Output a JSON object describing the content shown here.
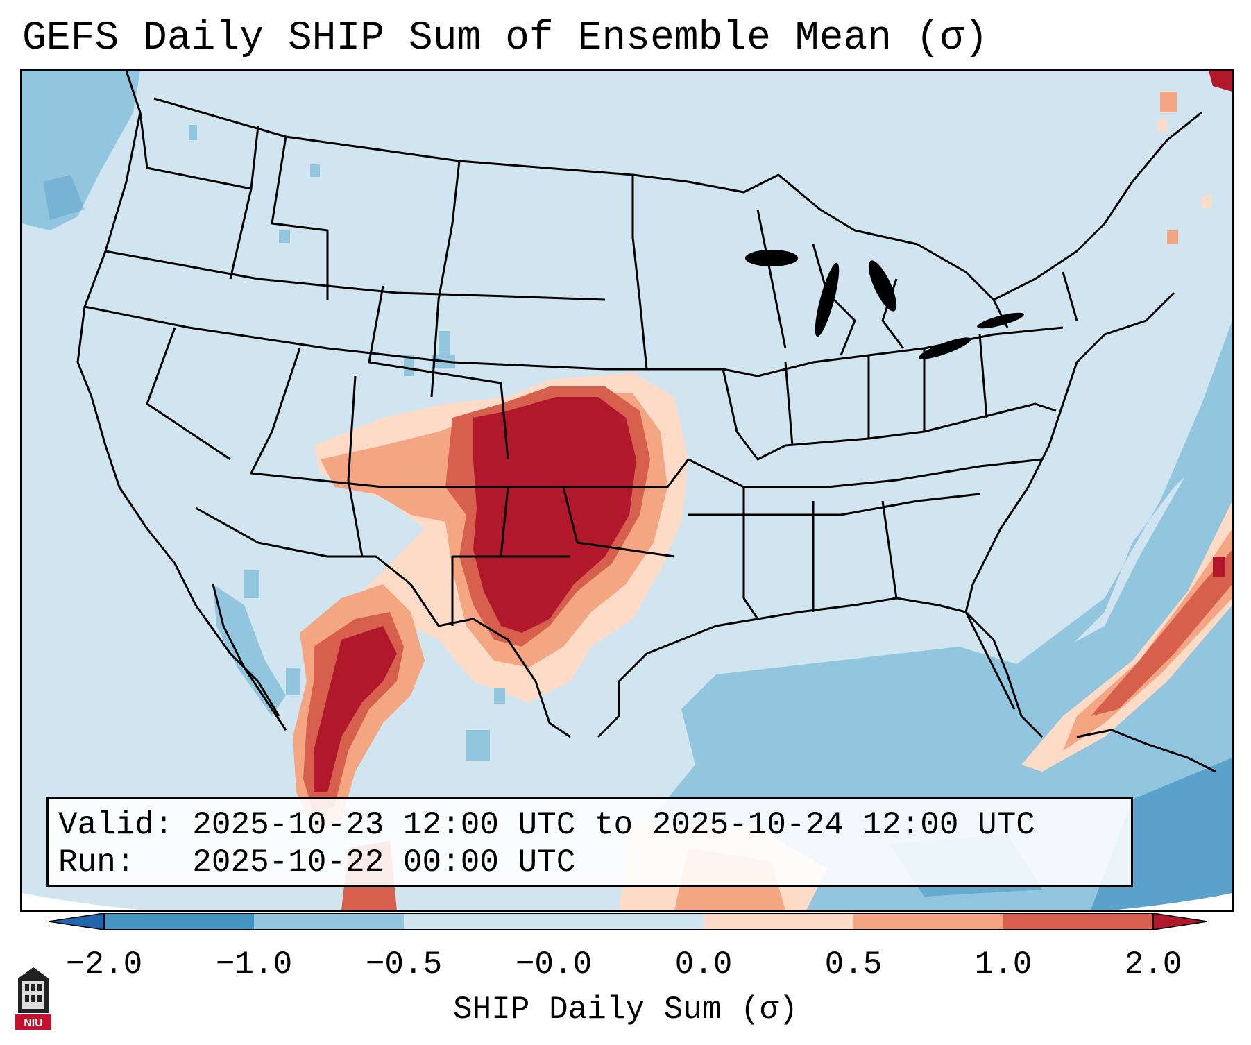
{
  "title": "GEFS Daily SHIP Sum of Ensemble Mean (σ)",
  "info": {
    "valid_label": "Valid:",
    "valid_value": "2025-10-23 12:00 UTC to 2025-10-24 12:00 UTC",
    "run_label": "Run:",
    "run_value": "2025-10-22 00:00 UTC"
  },
  "colorbar": {
    "label": "SHIP Daily Sum (σ)",
    "ticks": [
      "−2.0",
      "−1.0",
      "−0.5",
      "−0.0",
      "0.0",
      "0.5",
      "1.0",
      "2.0"
    ],
    "bin_colors": [
      "#4393c3",
      "#92c5de",
      "#d1e5f0",
      "#d1e5f0",
      "#fddbc7",
      "#f4a582",
      "#d6604d"
    ],
    "under_color": "#2166ac",
    "over_color": "#b2182b"
  },
  "logo": {
    "text": "NIU",
    "color": "#c8102e"
  },
  "map": {
    "background_color": "#d1e5f0",
    "ocean_blue": "#92c5de",
    "deep_blue": "#4393c3",
    "region_hi": "#b2182b",
    "region_mid": "#d6604d",
    "region_lo": "#f4a582",
    "region_faint": "#fddbc7"
  }
}
